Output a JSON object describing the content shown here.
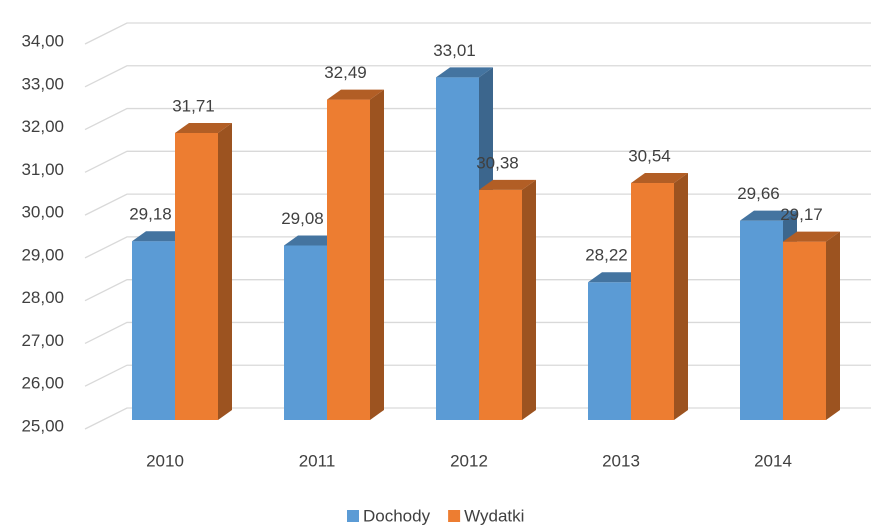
{
  "chart_data": {
    "type": "bar3d",
    "categories": [
      "2010",
      "2011",
      "2012",
      "2013",
      "2014"
    ],
    "series": [
      {
        "name": "Dochody",
        "color": "#5b9bd5",
        "values": [
          29.18,
          29.08,
          33.01,
          28.22,
          29.66
        ],
        "value_labels": [
          "29,18",
          "29,08",
          "33,01",
          "28,22",
          "29,66"
        ]
      },
      {
        "name": "Wydatki",
        "color": "#ed7d31",
        "values": [
          31.71,
          32.49,
          30.38,
          30.54,
          29.17
        ],
        "value_labels": [
          "31,71",
          "32,49",
          "30,38",
          "30,54",
          "29,17"
        ]
      }
    ],
    "ylim": [
      25,
      34
    ],
    "yticks": [
      {
        "value": 25,
        "label": "25,00"
      },
      {
        "value": 26,
        "label": "26,00"
      },
      {
        "value": 27,
        "label": "27,00"
      },
      {
        "value": 28,
        "label": "28,00"
      },
      {
        "value": 29,
        "label": "29,00"
      },
      {
        "value": 30,
        "label": "30,00"
      },
      {
        "value": 31,
        "label": "31,00"
      },
      {
        "value": 32,
        "label": "32,00"
      },
      {
        "value": 33,
        "label": "33,00"
      },
      {
        "value": 34,
        "label": "34,00"
      }
    ],
    "grid": true,
    "legend": "bottom"
  }
}
